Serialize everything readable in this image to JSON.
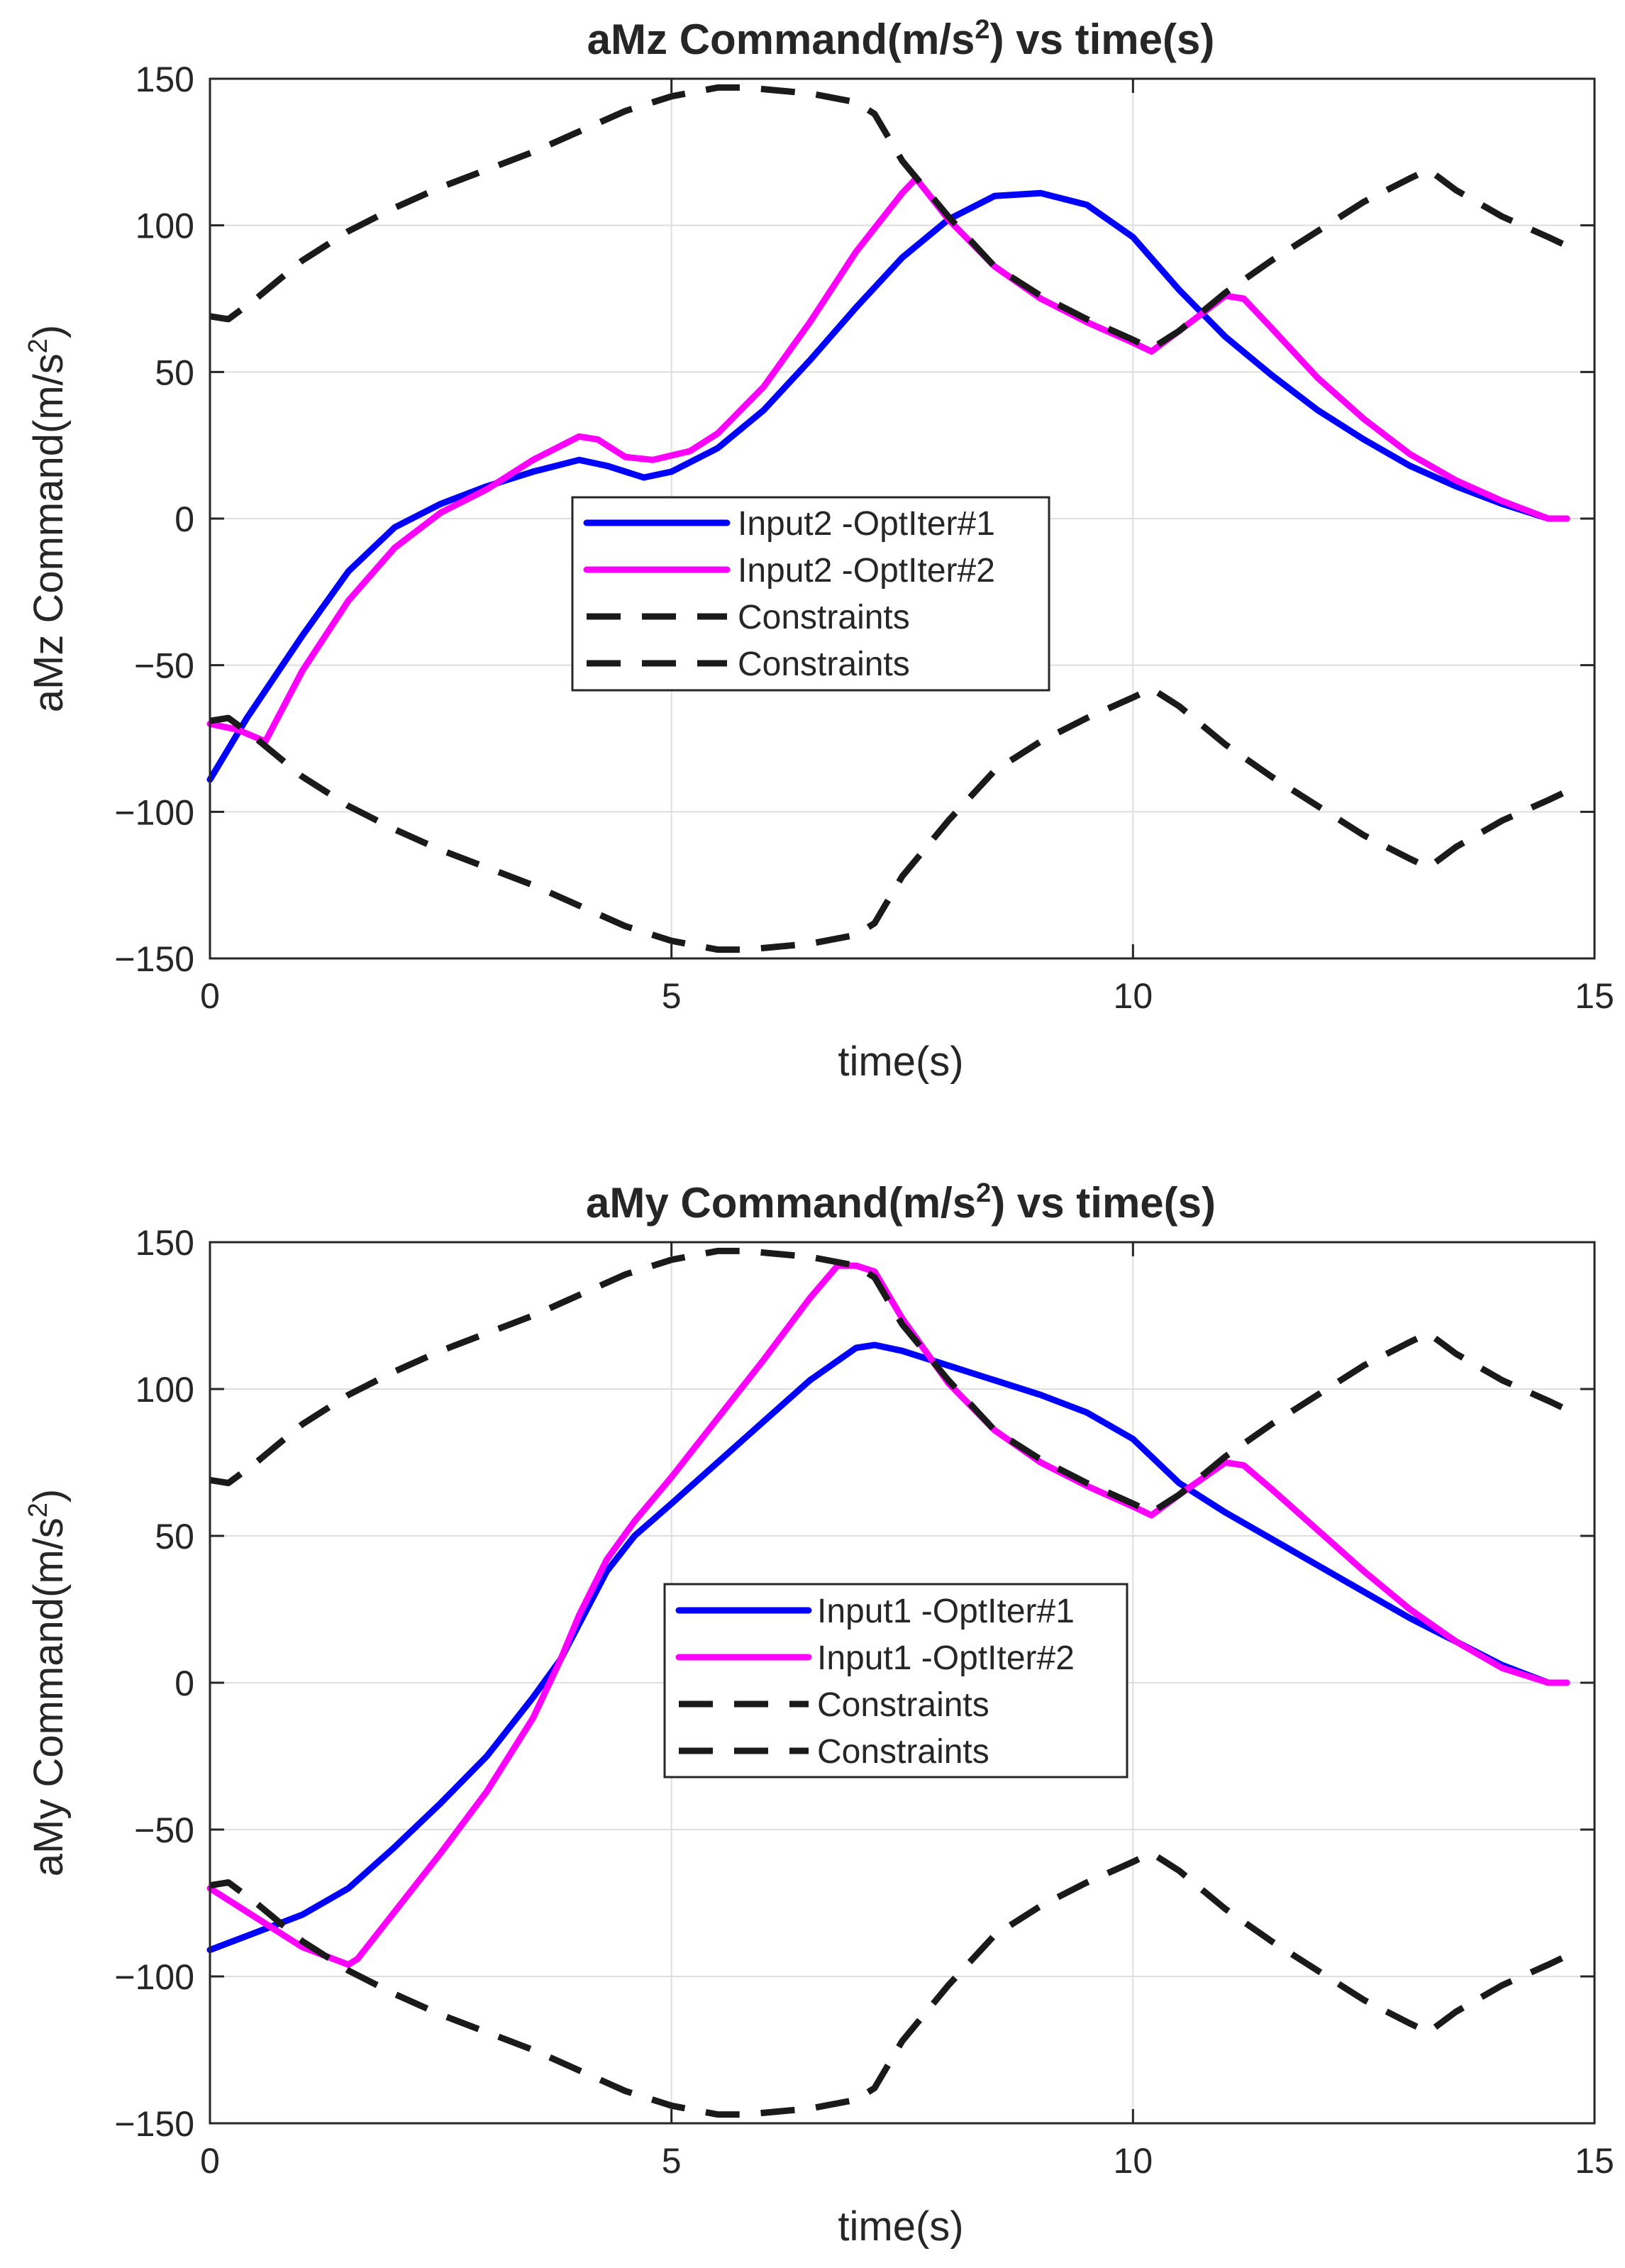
{
  "colors": {
    "background": "#ffffff",
    "axis": "#262626",
    "grid": "#dedede"
  },
  "chart_data": [
    {
      "type": "line",
      "title": "aMz  Command(m/s",
      "title_sup": "2",
      "title_rest": ")  vs  time(s)",
      "xlabel": "time(s)",
      "ylabel": "aMz  Command(m/s",
      "ylabel_sup": "2",
      "ylabel_rest": ")",
      "xlim": [
        0,
        15
      ],
      "ylim": [
        -150,
        150
      ],
      "xticks": [
        0,
        5,
        10,
        15
      ],
      "xtick_labels": [
        "0",
        "5",
        "10",
        "15"
      ],
      "yticks": [
        150,
        100,
        50,
        0,
        -50,
        -100,
        -150
      ],
      "ytick_labels": [
        "150",
        "100",
        "50",
        "0",
        "−50",
        "−100",
        "−150"
      ],
      "grid": true,
      "legend_position": "center",
      "series": [
        {
          "name": "Input2 -OptIter#1",
          "color": "#0000ff",
          "style": "solid",
          "x": [
            0,
            0.4,
            1.0,
            1.5,
            2.0,
            2.5,
            3.0,
            3.5,
            4.0,
            4.3,
            4.7,
            5.0,
            5.5,
            6.0,
            6.5,
            7.0,
            7.5,
            8.0,
            8.5,
            9.0,
            9.5,
            10.0,
            10.5,
            11.0,
            11.5,
            12.0,
            12.5,
            13.0,
            13.5,
            14.0,
            14.5,
            14.7
          ],
          "y": [
            -89,
            -68,
            -40,
            -18,
            -3,
            5,
            11,
            16,
            20,
            18,
            14,
            16,
            24,
            37,
            54,
            72,
            89,
            102,
            110,
            111,
            107,
            96,
            78,
            62,
            49,
            37,
            27,
            18,
            11,
            5,
            0,
            0
          ]
        },
        {
          "name": "Input2 -OptIter#2",
          "color": "#ff00ff",
          "style": "solid",
          "x": [
            0,
            0.3,
            0.6,
            1.0,
            1.5,
            2.0,
            2.5,
            3.0,
            3.5,
            4.0,
            4.2,
            4.5,
            4.8,
            5.2,
            5.5,
            6.0,
            6.5,
            7.0,
            7.5,
            7.65,
            8.0,
            8.5,
            9.0,
            9.5,
            10.0,
            10.2,
            10.5,
            11.0,
            11.2,
            11.5,
            12.0,
            12.5,
            13.0,
            13.5,
            14.0,
            14.5,
            14.7
          ],
          "y": [
            -70,
            -72,
            -76,
            -52,
            -28,
            -10,
            2,
            10,
            20,
            28,
            27,
            21,
            20,
            23,
            29,
            45,
            67,
            91,
            111,
            116,
            102,
            86,
            75,
            67,
            60,
            57,
            64,
            76,
            75,
            65,
            48,
            34,
            22,
            13,
            6,
            0,
            0
          ]
        },
        {
          "name": "Constraints",
          "color": "#1a1a1a",
          "style": "dashed",
          "x": [
            0,
            0.2,
            0.5,
            1.0,
            1.5,
            2.0,
            2.5,
            3.0,
            3.5,
            4.0,
            4.5,
            5.0,
            5.5,
            5.8,
            6.5,
            7.0,
            7.2,
            7.5,
            8.0,
            8.5,
            9.0,
            9.5,
            10.0,
            10.2,
            10.5,
            11.0,
            11.5,
            12.0,
            12.5,
            13.0,
            13.2,
            13.5,
            14.0,
            14.5,
            14.7
          ],
          "y": [
            69,
            68,
            75,
            88,
            98,
            106,
            113,
            119,
            125,
            132,
            139,
            144,
            147,
            147,
            145,
            142,
            138,
            122,
            103,
            86,
            76,
            68,
            61,
            58,
            64,
            77,
            88,
            98,
            108,
            116,
            119,
            112,
            103,
            96,
            93
          ]
        },
        {
          "name": "Constraints",
          "color": "#1a1a1a",
          "style": "dashed",
          "x": [
            0,
            0.2,
            0.5,
            1.0,
            1.5,
            2.0,
            2.5,
            3.0,
            3.5,
            4.0,
            4.5,
            5.0,
            5.5,
            5.8,
            6.5,
            7.0,
            7.2,
            7.5,
            8.0,
            8.5,
            9.0,
            9.5,
            10.0,
            10.2,
            10.5,
            11.0,
            11.5,
            12.0,
            12.5,
            13.0,
            13.2,
            13.5,
            14.0,
            14.5,
            14.7
          ],
          "y": [
            -69,
            -68,
            -75,
            -88,
            -98,
            -106,
            -113,
            -119,
            -125,
            -132,
            -139,
            -144,
            -147,
            -147,
            -145,
            -142,
            -138,
            -122,
            -103,
            -86,
            -76,
            -68,
            -61,
            -58,
            -64,
            -77,
            -88,
            -98,
            -108,
            -116,
            -119,
            -112,
            -103,
            -96,
            -93
          ]
        }
      ]
    },
    {
      "type": "line",
      "title": "aMy  Command(m/s",
      "title_sup": "2",
      "title_rest": ")  vs  time(s)",
      "xlabel": "time(s)",
      "ylabel": "aMy  Command(m/s",
      "ylabel_sup": "2",
      "ylabel_rest": ")",
      "xlim": [
        0,
        15
      ],
      "ylim": [
        -150,
        150
      ],
      "xticks": [
        0,
        5,
        10,
        15
      ],
      "xtick_labels": [
        "0",
        "5",
        "10",
        "15"
      ],
      "yticks": [
        150,
        100,
        50,
        0,
        -50,
        -100,
        -150
      ],
      "ytick_labels": [
        "150",
        "100",
        "50",
        "0",
        "−50",
        "−100",
        "−150"
      ],
      "grid": true,
      "legend_position": "center",
      "series": [
        {
          "name": "Input1 -OptIter#1",
          "color": "#0000ff",
          "style": "solid",
          "x": [
            0,
            0.5,
            1.0,
            1.5,
            2.0,
            2.5,
            3.0,
            3.5,
            3.8,
            4.0,
            4.3,
            4.6,
            5.0,
            5.5,
            6.0,
            6.5,
            7.0,
            7.2,
            7.5,
            8.0,
            8.5,
            9.0,
            9.5,
            10.0,
            10.5,
            11.0,
            11.5,
            12.0,
            12.5,
            13.0,
            13.5,
            14.0,
            14.5,
            14.7
          ],
          "y": [
            -91,
            -85,
            -79,
            -70,
            -56,
            -41,
            -25,
            -5,
            8,
            20,
            38,
            50,
            61,
            75,
            89,
            103,
            114,
            115,
            113,
            108,
            103,
            98,
            92,
            83,
            68,
            58,
            49,
            40,
            31,
            22,
            14,
            6,
            0,
            0
          ]
        },
        {
          "name": "Input1 -OptIter#2",
          "color": "#ff00ff",
          "style": "solid",
          "x": [
            0,
            0.5,
            1.0,
            1.5,
            1.6,
            2.0,
            2.5,
            3.0,
            3.5,
            3.8,
            4.0,
            4.3,
            4.6,
            5.0,
            5.5,
            6.0,
            6.5,
            6.8,
            7.0,
            7.2,
            7.5,
            8.0,
            8.5,
            9.0,
            9.5,
            10.0,
            10.2,
            10.5,
            11.0,
            11.2,
            11.5,
            12.0,
            12.5,
            13.0,
            13.5,
            14.0,
            14.5,
            14.7
          ],
          "y": [
            -70,
            -80,
            -90,
            -96,
            -94,
            -78,
            -58,
            -37,
            -12,
            8,
            23,
            42,
            55,
            70,
            90,
            110,
            131,
            142,
            142,
            140,
            124,
            102,
            86,
            75,
            67,
            60,
            57,
            64,
            75,
            74,
            66,
            52,
            38,
            25,
            14,
            5,
            0,
            0
          ]
        },
        {
          "name": "Constraints",
          "color": "#1a1a1a",
          "style": "dashed",
          "x": [
            0,
            0.2,
            0.5,
            1.0,
            1.5,
            2.0,
            2.5,
            3.0,
            3.5,
            4.0,
            4.5,
            5.0,
            5.5,
            5.8,
            6.5,
            7.0,
            7.2,
            7.5,
            8.0,
            8.5,
            9.0,
            9.5,
            10.0,
            10.2,
            10.5,
            11.0,
            11.5,
            12.0,
            12.5,
            13.0,
            13.2,
            13.5,
            14.0,
            14.5,
            14.7
          ],
          "y": [
            69,
            68,
            75,
            88,
            98,
            106,
            113,
            119,
            125,
            132,
            139,
            144,
            147,
            147,
            145,
            142,
            138,
            122,
            103,
            86,
            76,
            68,
            61,
            58,
            64,
            77,
            88,
            98,
            108,
            116,
            119,
            112,
            103,
            96,
            93
          ]
        },
        {
          "name": "Constraints",
          "color": "#1a1a1a",
          "style": "dashed",
          "x": [
            0,
            0.2,
            0.5,
            1.0,
            1.5,
            2.0,
            2.5,
            3.0,
            3.5,
            4.0,
            4.5,
            5.0,
            5.5,
            5.8,
            6.5,
            7.0,
            7.2,
            7.5,
            8.0,
            8.5,
            9.0,
            9.5,
            10.0,
            10.2,
            10.5,
            11.0,
            11.5,
            12.0,
            12.5,
            13.0,
            13.2,
            13.5,
            14.0,
            14.5,
            14.7
          ],
          "y": [
            -69,
            -68,
            -75,
            -88,
            -98,
            -106,
            -113,
            -119,
            -125,
            -132,
            -139,
            -144,
            -147,
            -147,
            -145,
            -142,
            -138,
            -122,
            -103,
            -86,
            -76,
            -68,
            -61,
            -58,
            -64,
            -77,
            -88,
            -98,
            -108,
            -116,
            -119,
            -112,
            -103,
            -96,
            -93
          ]
        }
      ]
    }
  ]
}
